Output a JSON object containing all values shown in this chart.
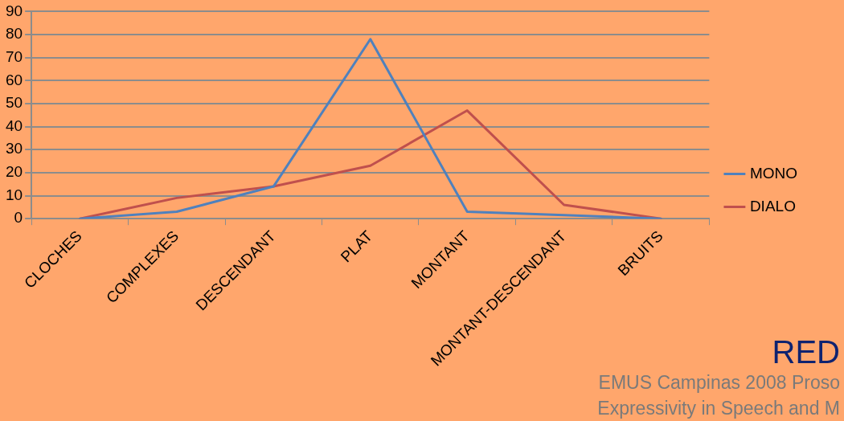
{
  "chart_data": {
    "type": "line",
    "categories": [
      "CLOCHES",
      "COMPLEXES",
      "DESCENDANT",
      "PLAT",
      "MONTANT",
      "MONTANT-DESCENDANT",
      "BRUITS"
    ],
    "series": [
      {
        "name": "MONO",
        "color": "#4f81bd",
        "values": [
          0,
          3,
          14,
          78,
          3,
          1.5,
          0
        ]
      },
      {
        "name": "DIALO",
        "color": "#c0504d",
        "values": [
          0,
          9,
          14,
          23,
          47,
          6,
          0
        ]
      }
    ],
    "ylim": [
      0,
      90
    ],
    "yticks": [
      0,
      10,
      20,
      30,
      40,
      50,
      60,
      70,
      80,
      90
    ],
    "grid": "y",
    "legend": "right",
    "marker": "none",
    "line_style": "solid",
    "annotations": [
      "EMUS Campinas 2008 Proso",
      "Expressivity in Speech and M",
      "RED"
    ]
  }
}
